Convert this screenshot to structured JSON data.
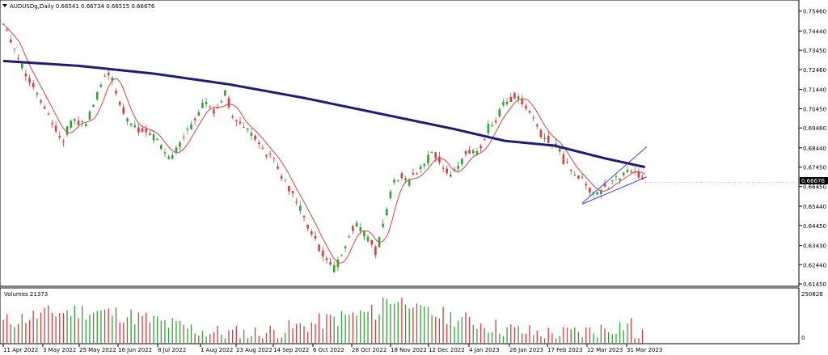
{
  "window": {
    "symbol_line": "AUDUSDg,Daily  0.66541 0.66734 0.66515 0.66676",
    "menu_arrow_icon": "triangle-down-icon"
  },
  "volume_panel": {
    "label": "Volumes 21373",
    "max_label": "250828",
    "min_label": "0"
  },
  "current_price_label": "0.66676",
  "colors": {
    "bull": "#2fa52f",
    "bear": "#e03a3a",
    "ma_fast": "#e04040",
    "ma_slow": "#1c1c7a",
    "channel": "#3a3aff",
    "price_tag_bg": "#000000",
    "price_tag_text": "#ffffff"
  },
  "chart_data": {
    "type": "candlestick",
    "price_ticks": [
      "0.75460",
      "0.74440",
      "0.73450",
      "0.72460",
      "0.71440",
      "0.70450",
      "0.69460",
      "0.68440",
      "0.67450",
      "0.66450",
      "0.65440",
      "0.64450",
      "0.63430",
      "0.62440",
      "0.61450"
    ],
    "date_ticks": [
      "11 Apr 2022",
      "3 May 2022",
      "25 May 2022",
      "16 Jun 2022",
      "8 Jul 2022",
      "1 Aug 2022",
      "23 Aug 2022",
      "14 Sep 2022",
      "6 Oct 2022",
      "28 Oct 2022",
      "18 Nov 2022",
      "12 Dec 2022",
      "4 Jan 2023",
      "26 Jan 2023",
      "17 Feb 2023",
      "12 Mar 2023",
      "31 Mar 2023"
    ],
    "ylim": [
      0.6133,
      0.7578
    ],
    "series": [
      {
        "name": "AUDUSDg",
        "type": "close"
      },
      {
        "type": "sma-fast"
      },
      {
        "type": "sma-slow"
      }
    ],
    "close_anchors": [
      [
        0,
        0.748
      ],
      [
        6,
        0.74
      ],
      [
        12,
        0.73
      ],
      [
        17,
        0.723
      ],
      [
        22,
        0.718
      ],
      [
        27,
        0.712
      ],
      [
        32,
        0.705
      ],
      [
        37,
        0.7
      ],
      [
        42,
        0.693
      ],
      [
        47,
        0.688
      ],
      [
        52,
        0.695
      ],
      [
        57,
        0.7
      ],
      [
        62,
        0.696
      ],
      [
        67,
        0.698
      ],
      [
        72,
        0.706
      ],
      [
        77,
        0.715
      ],
      [
        82,
        0.725
      ],
      [
        87,
        0.72
      ],
      [
        92,
        0.71
      ],
      [
        97,
        0.7
      ],
      [
        102,
        0.696
      ],
      [
        107,
        0.693
      ],
      [
        112,
        0.695
      ],
      [
        117,
        0.692
      ],
      [
        122,
        0.688
      ],
      [
        127,
        0.683
      ],
      [
        132,
        0.68
      ],
      [
        137,
        0.682
      ],
      [
        142,
        0.688
      ],
      [
        147,
        0.693
      ],
      [
        152,
        0.699
      ],
      [
        157,
        0.704
      ],
      [
        162,
        0.708
      ],
      [
        167,
        0.703
      ],
      [
        172,
        0.705
      ],
      [
        177,
        0.712
      ],
      [
        182,
        0.702
      ],
      [
        187,
        0.697
      ],
      [
        192,
        0.695
      ],
      [
        197,
        0.692
      ],
      [
        202,
        0.688
      ],
      [
        207,
        0.684
      ],
      [
        212,
        0.68
      ],
      [
        217,
        0.677
      ],
      [
        222,
        0.67
      ],
      [
        227,
        0.664
      ],
      [
        232,
        0.658
      ],
      [
        237,
        0.653
      ],
      [
        242,
        0.646
      ],
      [
        247,
        0.64
      ],
      [
        252,
        0.633
      ],
      [
        257,
        0.628
      ],
      [
        262,
        0.622
      ],
      [
        267,
        0.625
      ],
      [
        272,
        0.634
      ],
      [
        277,
        0.642
      ],
      [
        282,
        0.644
      ],
      [
        287,
        0.64
      ],
      [
        292,
        0.638
      ],
      [
        297,
        0.63
      ],
      [
        302,
        0.642
      ],
      [
        307,
        0.656
      ],
      [
        312,
        0.668
      ],
      [
        317,
        0.67
      ],
      [
        322,
        0.666
      ],
      [
        327,
        0.67
      ],
      [
        332,
        0.674
      ],
      [
        337,
        0.676
      ],
      [
        342,
        0.683
      ],
      [
        347,
        0.678
      ],
      [
        352,
        0.672
      ],
      [
        357,
        0.67
      ],
      [
        362,
        0.674
      ],
      [
        367,
        0.68
      ],
      [
        372,
        0.683
      ],
      [
        377,
        0.68
      ],
      [
        382,
        0.686
      ],
      [
        387,
        0.695
      ],
      [
        392,
        0.698
      ],
      [
        397,
        0.705
      ],
      [
        402,
        0.708
      ],
      [
        407,
        0.711
      ],
      [
        412,
        0.71
      ],
      [
        417,
        0.706
      ],
      [
        422,
        0.7
      ],
      [
        427,
        0.693
      ],
      [
        432,
        0.69
      ],
      [
        437,
        0.688
      ],
      [
        442,
        0.685
      ],
      [
        447,
        0.678
      ],
      [
        452,
        0.673
      ],
      [
        457,
        0.67
      ],
      [
        462,
        0.668
      ],
      [
        467,
        0.662
      ],
      [
        472,
        0.66
      ],
      [
        477,
        0.664
      ],
      [
        482,
        0.665
      ],
      [
        487,
        0.668
      ],
      [
        492,
        0.67
      ],
      [
        497,
        0.672
      ],
      [
        502,
        0.674
      ],
      [
        507,
        0.67
      ],
      [
        512,
        0.6668
      ]
    ],
    "volume_max": 250828
  }
}
